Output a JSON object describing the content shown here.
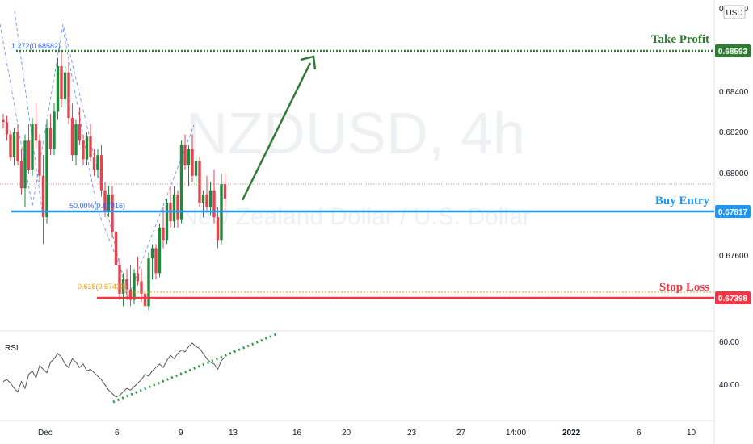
{
  "header": {
    "currency_badge": "USD"
  },
  "watermark": {
    "symbol": "NZDUSD, 4h",
    "description": "New Zealand Dollar / U.S. Dollar"
  },
  "colors": {
    "up": "#26a69a",
    "down": "#ef5350",
    "up_candle": "#1e8a3c",
    "down_candle": "#e0464f",
    "take_profit": "#2e7d32",
    "buy_entry": "#2196f3",
    "stop_loss": "#f23645",
    "fib": "#ff9800",
    "rsi": "#555555",
    "rsi_trend": "#2e9c3e",
    "arrow": "#2e7d32"
  },
  "annotations": {
    "take_profit_label": "Take Profit",
    "buy_entry_label": "Buy Entry",
    "stop_loss_label": "Stop Loss",
    "fib_1272": "1.272(0.68582)",
    "fib_50": "50.00%(0.67816)",
    "fib_618": "0.618(0.67423)"
  },
  "price_axis": {
    "top_label": "0.68800",
    "ticks": [
      "0.68400",
      "0.68200",
      "0.68000",
      "0.67600"
    ],
    "markers": [
      {
        "label": "0.68593",
        "role": "take_profit"
      },
      {
        "label": "0.67817",
        "role": "buy_entry"
      },
      {
        "label": "0.67398",
        "role": "stop_loss"
      }
    ]
  },
  "rsi": {
    "label": "RSI",
    "ticks": [
      "60.00",
      "40.00"
    ]
  },
  "time_axis": {
    "labels": [
      "Dec",
      "6",
      "9",
      "13",
      "16",
      "20",
      "23",
      "27",
      "14:00",
      "2022",
      "6",
      "10"
    ]
  },
  "chart_data": {
    "type": "candlestick",
    "symbol": "NZDUSD",
    "timeframe": "4h",
    "ylim": [
      0.673,
      0.689
    ],
    "levels": {
      "take_profit": 0.68593,
      "buy_entry": 0.67817,
      "stop_loss": 0.67398
    },
    "candles": [
      [
        0.6832,
        0.6835,
        0.6828,
        0.6831
      ],
      [
        0.6831,
        0.6834,
        0.6822,
        0.6825
      ],
      [
        0.6825,
        0.6827,
        0.6812,
        0.6814
      ],
      [
        0.6814,
        0.6828,
        0.681,
        0.6826
      ],
      [
        0.6826,
        0.683,
        0.681,
        0.6812
      ],
      [
        0.6812,
        0.6818,
        0.6796,
        0.6799
      ],
      [
        0.6799,
        0.6825,
        0.679,
        0.6822
      ],
      [
        0.6822,
        0.683,
        0.6806,
        0.6808
      ],
      [
        0.6808,
        0.6833,
        0.6805,
        0.683
      ],
      [
        0.683,
        0.684,
        0.6818,
        0.6822
      ],
      [
        0.6822,
        0.6825,
        0.6802,
        0.6805
      ],
      [
        0.6805,
        0.6815,
        0.6772,
        0.6785
      ],
      [
        0.6785,
        0.6832,
        0.6782,
        0.6828
      ],
      [
        0.6828,
        0.6835,
        0.6815,
        0.6818
      ],
      [
        0.6818,
        0.684,
        0.6815,
        0.6836
      ],
      [
        0.6836,
        0.6862,
        0.6832,
        0.6858
      ],
      [
        0.6858,
        0.6865,
        0.6838,
        0.6842
      ],
      [
        0.6842,
        0.6858,
        0.6838,
        0.6855
      ],
      [
        0.6855,
        0.686,
        0.683,
        0.6833
      ],
      [
        0.6833,
        0.684,
        0.6812,
        0.6815
      ],
      [
        0.6815,
        0.6832,
        0.681,
        0.683
      ],
      [
        0.683,
        0.6838,
        0.682,
        0.6822
      ],
      [
        0.6822,
        0.6825,
        0.681,
        0.6813
      ],
      [
        0.6813,
        0.6826,
        0.681,
        0.6824
      ],
      [
        0.6824,
        0.683,
        0.6812,
        0.6814
      ],
      [
        0.6814,
        0.6818,
        0.6805,
        0.6808
      ],
      [
        0.6808,
        0.6818,
        0.6804,
        0.6815
      ],
      [
        0.6815,
        0.682,
        0.6795,
        0.6798
      ],
      [
        0.6798,
        0.6802,
        0.6785,
        0.6788
      ],
      [
        0.6788,
        0.68,
        0.6785,
        0.6796
      ],
      [
        0.6796,
        0.68,
        0.6775,
        0.6778
      ],
      [
        0.6778,
        0.6782,
        0.676,
        0.6762
      ],
      [
        0.6762,
        0.6765,
        0.6745,
        0.6748
      ],
      [
        0.6748,
        0.6758,
        0.6742,
        0.6755
      ],
      [
        0.6755,
        0.676,
        0.6745,
        0.675
      ],
      [
        0.675,
        0.6762,
        0.6742,
        0.6745
      ],
      [
        0.6745,
        0.676,
        0.6743,
        0.6758
      ],
      [
        0.6758,
        0.6766,
        0.6752,
        0.6754
      ],
      [
        0.6754,
        0.676,
        0.6744,
        0.6748
      ],
      [
        0.6748,
        0.6758,
        0.6738,
        0.6742
      ],
      [
        0.6742,
        0.6768,
        0.674,
        0.6765
      ],
      [
        0.6765,
        0.6772,
        0.6755,
        0.677
      ],
      [
        0.677,
        0.6772,
        0.6755,
        0.6758
      ],
      [
        0.6758,
        0.6782,
        0.6756,
        0.678
      ],
      [
        0.678,
        0.679,
        0.677,
        0.6774
      ],
      [
        0.6774,
        0.6794,
        0.6772,
        0.6792
      ],
      [
        0.6792,
        0.68,
        0.678,
        0.6783
      ],
      [
        0.6783,
        0.68,
        0.678,
        0.6796
      ],
      [
        0.6796,
        0.6798,
        0.678,
        0.6784
      ],
      [
        0.6784,
        0.6822,
        0.6782,
        0.682
      ],
      [
        0.682,
        0.6825,
        0.6808,
        0.681
      ],
      [
        0.681,
        0.682,
        0.68,
        0.6818
      ],
      [
        0.6818,
        0.6825,
        0.6802,
        0.6805
      ],
      [
        0.6805,
        0.6815,
        0.68,
        0.6812
      ],
      [
        0.6812,
        0.6814,
        0.679,
        0.6792
      ],
      [
        0.6792,
        0.6798,
        0.6785,
        0.6796
      ],
      [
        0.6796,
        0.6805,
        0.6788,
        0.679
      ],
      [
        0.679,
        0.6802,
        0.6786,
        0.6798
      ],
      [
        0.6798,
        0.6808,
        0.6782,
        0.6785
      ],
      [
        0.6785,
        0.679,
        0.677,
        0.6774
      ],
      [
        0.6774,
        0.6806,
        0.6772,
        0.6801
      ],
      [
        0.6801,
        0.6806,
        0.6788,
        0.6794
      ]
    ],
    "rsi_values": [
      42,
      43,
      41,
      38,
      36,
      42,
      38,
      46,
      48,
      44,
      51,
      49,
      47,
      53,
      55,
      58,
      56,
      52,
      50,
      55,
      53,
      50,
      52,
      48,
      49,
      47,
      45,
      43,
      40,
      37,
      35,
      33,
      34,
      36,
      38,
      37,
      39,
      41,
      43,
      46,
      45,
      48,
      50,
      52,
      50,
      54,
      57,
      55,
      58,
      60,
      59,
      62,
      64,
      62,
      61,
      58,
      55,
      53,
      52,
      49,
      54,
      56
    ],
    "rsi_range": [
      20,
      70
    ]
  }
}
